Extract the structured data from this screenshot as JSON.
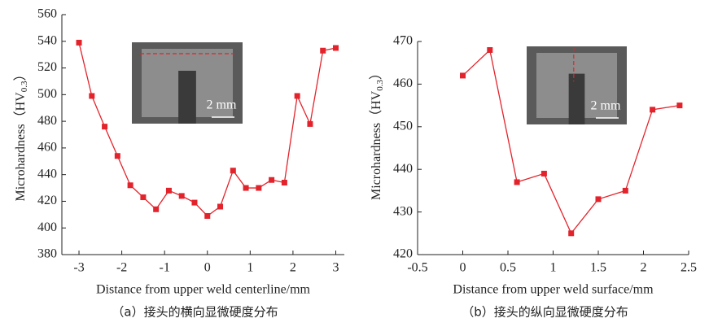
{
  "chart_data": [
    {
      "type": "line",
      "x_label": "Distance from upper weld centerline/mm",
      "y_label": "Microhardness（HV",
      "y_label_subscript": "0.3",
      "y_label_suffix": "）",
      "caption": "（a）接头的横向显微硬度分布",
      "inset_scale_label": "2 mm",
      "x": [
        -3,
        -2.7,
        -2.4,
        -2.1,
        -1.8,
        -1.5,
        -1.2,
        -0.9,
        -0.6,
        -0.3,
        0,
        0.3,
        0.6,
        0.9,
        1.2,
        1.5,
        1.8,
        2.1,
        2.4,
        2.7,
        3.0
      ],
      "series": [
        {
          "color": "#e3232b",
          "values": [
            539,
            499,
            476,
            454,
            432,
            423,
            414,
            428,
            424,
            419,
            409,
            416,
            443,
            430,
            430,
            436,
            434,
            499,
            478,
            533,
            535
          ]
        }
      ],
      "xlim": [
        -3.4,
        3.2
      ],
      "xticks": [
        -3,
        -2,
        -1,
        0,
        1,
        2,
        3
      ],
      "ylim": [
        380,
        560
      ],
      "yticks": [
        380,
        400,
        420,
        440,
        460,
        480,
        500,
        520,
        540,
        560
      ]
    },
    {
      "type": "line",
      "x_label": "Distance from upper weld surface/mm",
      "y_label": "Microhardness（HV",
      "y_label_subscript": "0.3",
      "y_label_suffix": "）",
      "caption": "（b）接头的纵向显微硬度分布",
      "inset_scale_label": "2 mm",
      "x": [
        0,
        0.3,
        0.6,
        0.9,
        1.2,
        1.5,
        1.8,
        2.1,
        2.4
      ],
      "series": [
        {
          "color": "#e3232b",
          "values": [
            462,
            468,
            437,
            439,
            425,
            433,
            435,
            454,
            455
          ]
        }
      ],
      "xlim": [
        -0.5,
        2.5
      ],
      "xticks": [
        -0.5,
        0,
        0.5,
        1.0,
        1.5,
        2.0,
        2.5
      ],
      "ylim": [
        420,
        470
      ],
      "yticks": [
        420,
        430,
        440,
        450,
        460,
        470
      ]
    }
  ]
}
